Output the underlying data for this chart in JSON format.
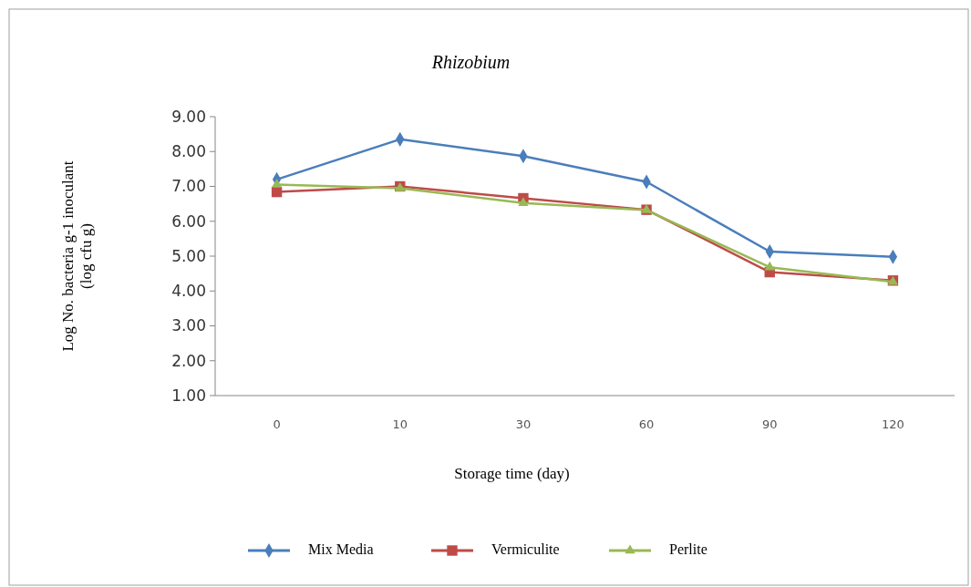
{
  "chart_data": {
    "type": "line",
    "title": "Rhizobium",
    "xlabel": "Storage time (day)",
    "ylabel": "Log No. bacteria g-1 inoculant\n(log cfu g)",
    "categories": [
      "0",
      "10",
      "30",
      "60",
      "90",
      "120"
    ],
    "series": [
      {
        "name": "Mix Media",
        "color": "#4a7ebb",
        "marker": "diamond",
        "values": [
          7.2,
          8.35,
          7.87,
          7.13,
          5.13,
          4.98
        ]
      },
      {
        "name": "Vermiculite",
        "color": "#be4b48",
        "marker": "square",
        "values": [
          6.84,
          7.0,
          6.66,
          6.33,
          4.54,
          4.3
        ]
      },
      {
        "name": "Perlite",
        "color": "#98b954",
        "marker": "triangle",
        "values": [
          7.05,
          6.95,
          6.52,
          6.32,
          4.68,
          4.26
        ]
      }
    ],
    "ylim": [
      1,
      9
    ],
    "yticks": [
      {
        "value": 1,
        "label": "1.00"
      },
      {
        "value": 2,
        "label": "2.00"
      },
      {
        "value": 3,
        "label": "3.00"
      },
      {
        "value": 4,
        "label": "4.00"
      },
      {
        "value": 5,
        "label": "5.00"
      },
      {
        "value": 6,
        "label": "6.00"
      },
      {
        "value": 7,
        "label": "7.00"
      },
      {
        "value": 8,
        "label": "8.00"
      },
      {
        "value": 9,
        "label": "9.00"
      }
    ],
    "grid": false,
    "legend": "bottom",
    "line_style": "solid"
  }
}
